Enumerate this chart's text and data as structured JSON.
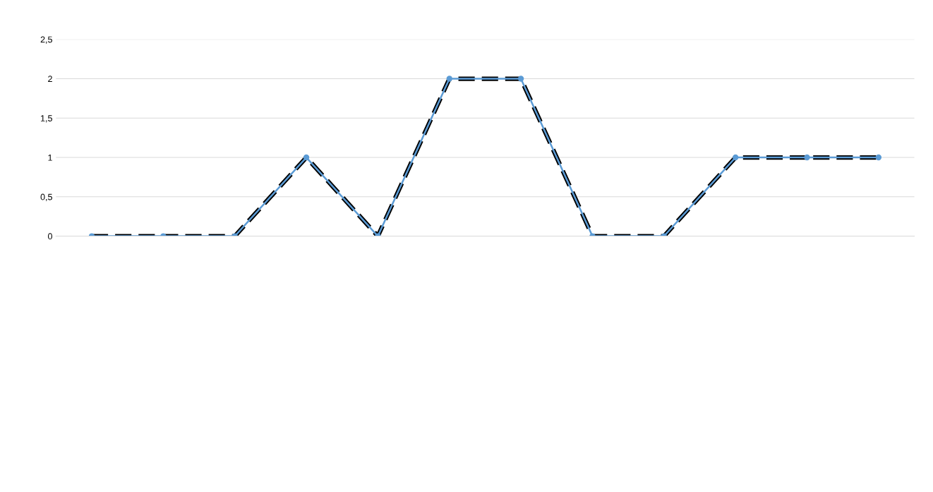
{
  "chart_data": {
    "type": "line",
    "categories": [
      null,
      null,
      null,
      null,
      null,
      null,
      null,
      null,
      null,
      null,
      null,
      null
    ],
    "series": [
      {
        "color": "#000000",
        "values": [
          0,
          0,
          0,
          1,
          0,
          2,
          2,
          0,
          0,
          1,
          1,
          1
        ],
        "line_style": "dashed",
        "marker": "none"
      },
      {
        "color": "#5b9bd5",
        "values": [
          0,
          0,
          0,
          1,
          0,
          2,
          2,
          0,
          0,
          1,
          1,
          1
        ],
        "line_style": "solid",
        "marker": "circle"
      }
    ],
    "ylim": [
      0,
      2.5
    ],
    "yticks": [
      {
        "value": 0,
        "label": "0"
      },
      {
        "value": 0.5,
        "label": "0,5"
      },
      {
        "value": 1,
        "label": "1"
      },
      {
        "value": 1.5,
        "label": "1,5"
      },
      {
        "value": 2,
        "label": "2"
      },
      {
        "value": 2.5,
        "label": "2,5"
      }
    ],
    "grid": "y",
    "legend": false
  }
}
